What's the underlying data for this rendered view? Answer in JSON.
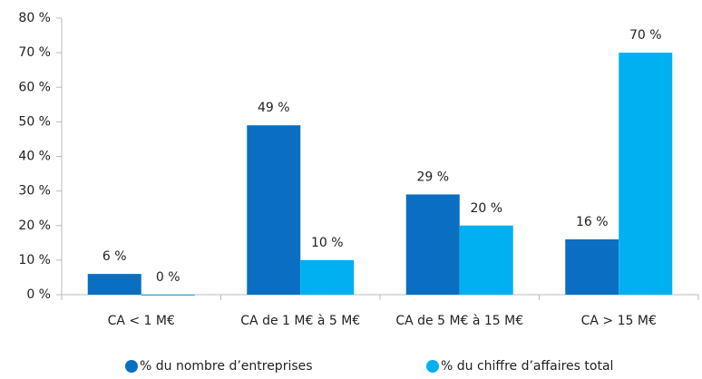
{
  "chart_data": {
    "type": "bar",
    "categories": [
      "CA < 1 M€",
      "CA de 1 M€ à 5 M€",
      "CA de 5 M€ à 15 M€",
      "CA > 15 M€"
    ],
    "series": [
      {
        "name": "% du nombre d’entreprises",
        "color": "#0a6fc2",
        "values": [
          6,
          49,
          29,
          16
        ],
        "value_labels": [
          "6 %",
          "49 %",
          "29 %",
          "16 %"
        ]
      },
      {
        "name": "% du chiffre d’affaires total",
        "color": "#00b0f0",
        "values": [
          0,
          10,
          20,
          70
        ],
        "value_labels": [
          "0 %",
          "10 %",
          "20 %",
          "70 %"
        ]
      }
    ],
    "ylim": [
      0,
      80
    ],
    "yticks": [
      {
        "value": 0,
        "label": "0 %"
      },
      {
        "value": 10,
        "label": "10 %"
      },
      {
        "value": 20,
        "label": "20 %"
      },
      {
        "value": 30,
        "label": "30 %"
      },
      {
        "value": 40,
        "label": "40 %"
      },
      {
        "value": 50,
        "label": "50 %"
      },
      {
        "value": 60,
        "label": "60 %"
      },
      {
        "value": 70,
        "label": "70 %"
      },
      {
        "value": 80,
        "label": "80 %"
      }
    ],
    "grid": false,
    "legend": "bottom"
  }
}
